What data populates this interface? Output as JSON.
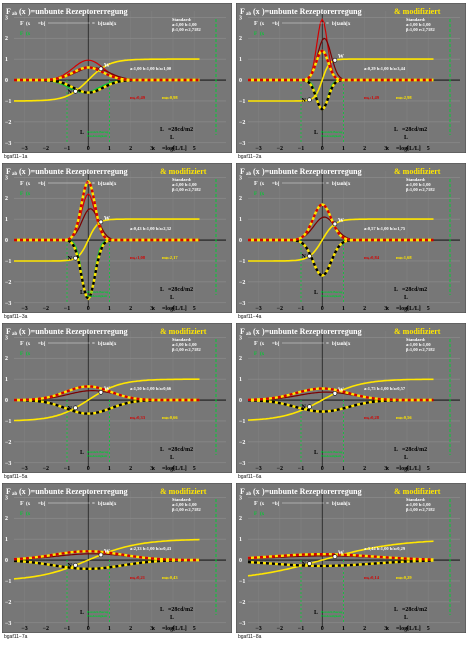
{
  "page": {
    "colors": {
      "background": "#777777",
      "frame": "#ffffff",
      "yellow": "#ffe600",
      "red": "#d40000",
      "darkred": "#7a0000",
      "green": "#00cc33",
      "black": "#000000",
      "white": "#ffffff"
    },
    "labels": {
      "title_main": "=unbunte Rezeptorerregung",
      "title_sub": "& modifiziert",
      "formula": "b[tanh[x",
      "standard_head": "Standard:",
      "standard_a": "a:1,00 b:1,00",
      "standard_b": "β:1,00 e:2,7182",
      "lum": "L",
      "lum_val": "=28cd/m",
      "axis_x": "x",
      "axis_label": "=log[L/L",
      "bright_label": "Bereich Bezug",
      "bright_label2": "Eindeutigkeit",
      "y_ticks": [
        "3",
        "2",
        "1",
        "0",
        "−1",
        "−2",
        "−3"
      ],
      "x_ticks": [
        "−3",
        "−2",
        "−1",
        "0",
        "1",
        "2",
        "3",
        "4",
        "5",
        "6"
      ],
      "x0_label": "x",
      "w_label": "W",
      "n_label": "N"
    }
  },
  "chart_data": [
    {
      "type": "line",
      "panel": "1",
      "footer": "bgaf11−1a",
      "title_suffix_modified": false,
      "params": "a:1,00 b:1,00 b/a:1,00",
      "slope_labels": {
        "m_left": "mₗᵣ:0,49",
        "m_right": "mₗₙ:0,98"
      },
      "xlim": [
        -3.5,
        6.5
      ],
      "ylim": [
        -3.2,
        3.3
      ],
      "series": [
        {
          "color": "#ffe600",
          "kind": "tanh",
          "scale": 1.0,
          "offset": 0,
          "amp": 1.0
        },
        {
          "color": "#d40000",
          "kind": "bump",
          "amp": 0.95,
          "width": 1.0,
          "center": 0
        },
        {
          "color": "#7a0000",
          "kind": "bump",
          "amp": 0.6,
          "width": 1.1,
          "center": 0.2
        },
        {
          "color": "#00cc33",
          "kind": "bump",
          "amp": -0.6,
          "width": 1.0,
          "center": -0.2
        },
        {
          "color": "#000000",
          "kind": "bump_dash",
          "amp": -0.6,
          "width": 1.0,
          "center": 0
        }
      ]
    },
    {
      "type": "line",
      "panel": "2",
      "footer": "bgaf11−2a",
      "title_suffix_modified": true,
      "params": "a:0,29 b:1,00 b/a:3,44",
      "slope_labels": {
        "m_left": "mₗᵣ:1,49",
        "m_right": "mₗₙ:2,98"
      },
      "xlim": [
        -3.5,
        6.5
      ],
      "ylim": [
        -3.2,
        3.3
      ],
      "series": [
        {
          "color": "#ffe600",
          "kind": "tanh",
          "scale": 3.0,
          "offset": 0,
          "amp": 1.0
        },
        {
          "color": "#d40000",
          "kind": "bump",
          "amp": 2.9,
          "width": 0.35,
          "center": 0
        },
        {
          "color": "#7a0000",
          "kind": "bump",
          "amp": 2.0,
          "width": 0.45,
          "center": 0.1
        },
        {
          "color": "#00cc33",
          "kind": "bump",
          "amp": -1.4,
          "width": 0.35,
          "center": 0
        },
        {
          "color": "#000000",
          "kind": "bump_dash",
          "amp": -1.4,
          "width": 0.4,
          "center": 0
        }
      ]
    },
    {
      "type": "line",
      "panel": "3",
      "footer": "bgaf11−3a",
      "title_suffix_modified": true,
      "params": "a:0,43 b:1,00 b/a:2,32",
      "slope_labels": {
        "m_left": "mₗᵣ:1,08",
        "m_right": "mₗₙ:2,17"
      },
      "xlim": [
        -3.5,
        6.5
      ],
      "ylim": [
        -3.2,
        3.3
      ],
      "series": [
        {
          "color": "#ffe600",
          "kind": "tanh",
          "scale": 2.2,
          "offset": 0,
          "amp": 1.0
        },
        {
          "color": "#d40000",
          "kind": "bump",
          "amp": 2.2,
          "width": 0.45,
          "center": 0
        },
        {
          "color": "#7a0000",
          "kind": "bump",
          "amp": 1.5,
          "width": 0.55,
          "center": 0.1
        },
        {
          "color": "#00cc33",
          "kind": "bump",
          "amp": -2.8,
          "width": 0.4,
          "center": 0
        },
        {
          "color": "#000000",
          "kind": "bump_dash",
          "amp": -2.8,
          "width": 0.45,
          "center": 0
        }
      ]
    },
    {
      "type": "line",
      "panel": "4",
      "footer": "bgaf11−4a",
      "title_suffix_modified": true,
      "params": "a:0,57 b:1,00 b/a:1,75",
      "slope_labels": {
        "m_left": "mₗᵣ:0,84",
        "m_right": "mₗₙ:1,68"
      },
      "xlim": [
        -3.5,
        6.5
      ],
      "ylim": [
        -3.2,
        3.3
      ],
      "series": [
        {
          "color": "#ffe600",
          "kind": "tanh",
          "scale": 1.7,
          "offset": 0,
          "amp": 1.0
        },
        {
          "color": "#d40000",
          "kind": "bump",
          "amp": 1.7,
          "width": 0.6,
          "center": 0
        },
        {
          "color": "#7a0000",
          "kind": "bump",
          "amp": 1.1,
          "width": 0.7,
          "center": 0.1
        },
        {
          "color": "#00cc33",
          "kind": "bump",
          "amp": -1.7,
          "width": 0.6,
          "center": 0
        },
        {
          "color": "#000000",
          "kind": "bump_dash",
          "amp": -1.7,
          "width": 0.6,
          "center": 0
        }
      ]
    },
    {
      "type": "line",
      "panel": "5",
      "footer": "bgaf11−5a",
      "title_suffix_modified": true,
      "params": "a:1,50 b:1,00 b/a:0,66",
      "slope_labels": {
        "m_left": "mₗᵣ:0,33",
        "m_right": "mₗₙ:0,66"
      },
      "xlim": [
        -3.5,
        6.5
      ],
      "ylim": [
        -3.2,
        3.3
      ],
      "series": [
        {
          "color": "#ffe600",
          "kind": "tanh",
          "scale": 0.65,
          "offset": 0,
          "amp": 1.0
        },
        {
          "color": "#d40000",
          "kind": "bump",
          "amp": 0.65,
          "width": 1.5,
          "center": 0
        },
        {
          "color": "#7a0000",
          "kind": "bump",
          "amp": 0.45,
          "width": 1.6,
          "center": 0.2
        },
        {
          "color": "#00cc33",
          "kind": "bump",
          "amp": -0.65,
          "width": 1.5,
          "center": 0
        },
        {
          "color": "#000000",
          "kind": "bump_dash",
          "amp": -0.65,
          "width": 1.5,
          "center": 0
        }
      ]
    },
    {
      "type": "line",
      "panel": "6",
      "footer": "bgaf11−6a",
      "title_suffix_modified": true,
      "params": "a:1,75 b:1,00 b/a:0,57",
      "slope_labels": {
        "m_left": "mₗᵣ:0,28",
        "m_right": "mₗₙ:0,56"
      },
      "xlim": [
        -3.5,
        6.5
      ],
      "ylim": [
        -3.2,
        3.3
      ],
      "series": [
        {
          "color": "#ffe600",
          "kind": "tanh",
          "scale": 0.55,
          "offset": 0,
          "amp": 1.0
        },
        {
          "color": "#d40000",
          "kind": "bump",
          "amp": 0.55,
          "width": 1.75,
          "center": 0
        },
        {
          "color": "#7a0000",
          "kind": "bump",
          "amp": 0.38,
          "width": 1.8,
          "center": 0.2
        },
        {
          "color": "#00cc33",
          "kind": "bump",
          "amp": -0.55,
          "width": 1.75,
          "center": 0
        },
        {
          "color": "#000000",
          "kind": "bump_dash",
          "amp": -0.55,
          "width": 1.75,
          "center": 0
        }
      ]
    },
    {
      "type": "line",
      "panel": "7",
      "footer": "bgaf11−7a",
      "title_suffix_modified": true,
      "params": "a:2,33 b:1,00 b/a:0,43",
      "slope_labels": {
        "m_left": "mₗᵣ:0,21",
        "m_right": "mₗₙ:0,43"
      },
      "xlim": [
        -3.5,
        6.5
      ],
      "ylim": [
        -3.2,
        3.3
      ],
      "series": [
        {
          "color": "#ffe600",
          "kind": "tanh",
          "scale": 0.42,
          "offset": 0,
          "amp": 1.0
        },
        {
          "color": "#d40000",
          "kind": "bump",
          "amp": 0.42,
          "width": 2.3,
          "center": 0
        },
        {
          "color": "#7a0000",
          "kind": "bump",
          "amp": 0.3,
          "width": 2.4,
          "center": 0.2
        },
        {
          "color": "#00cc33",
          "kind": "bump",
          "amp": -0.42,
          "width": 2.3,
          "center": 0
        },
        {
          "color": "#000000",
          "kind": "bump_dash",
          "amp": -0.42,
          "width": 2.3,
          "center": 0
        }
      ]
    },
    {
      "type": "line",
      "panel": "8",
      "footer": "bgaf11−8a",
      "title_suffix_modified": true,
      "params": "a:3,44 b:1,00 b/a:0,29",
      "slope_labels": {
        "m_left": "mₗᵣ:0,14",
        "m_right": "mₗₙ:0,29"
      },
      "xlim": [
        -3.5,
        6.5
      ],
      "ylim": [
        -3.2,
        3.3
      ],
      "series": [
        {
          "color": "#ffe600",
          "kind": "tanh",
          "scale": 0.28,
          "offset": 0,
          "amp": 1.0
        },
        {
          "color": "#d40000",
          "kind": "bump",
          "amp": 0.28,
          "width": 3.4,
          "center": 0
        },
        {
          "color": "#7a0000",
          "kind": "bump",
          "amp": 0.2,
          "width": 3.5,
          "center": 0.2
        },
        {
          "color": "#00cc33",
          "kind": "bump",
          "amp": -0.28,
          "width": 3.4,
          "center": 0
        },
        {
          "color": "#000000",
          "kind": "bump_dash",
          "amp": -0.28,
          "width": 3.4,
          "center": 0
        }
      ]
    }
  ]
}
